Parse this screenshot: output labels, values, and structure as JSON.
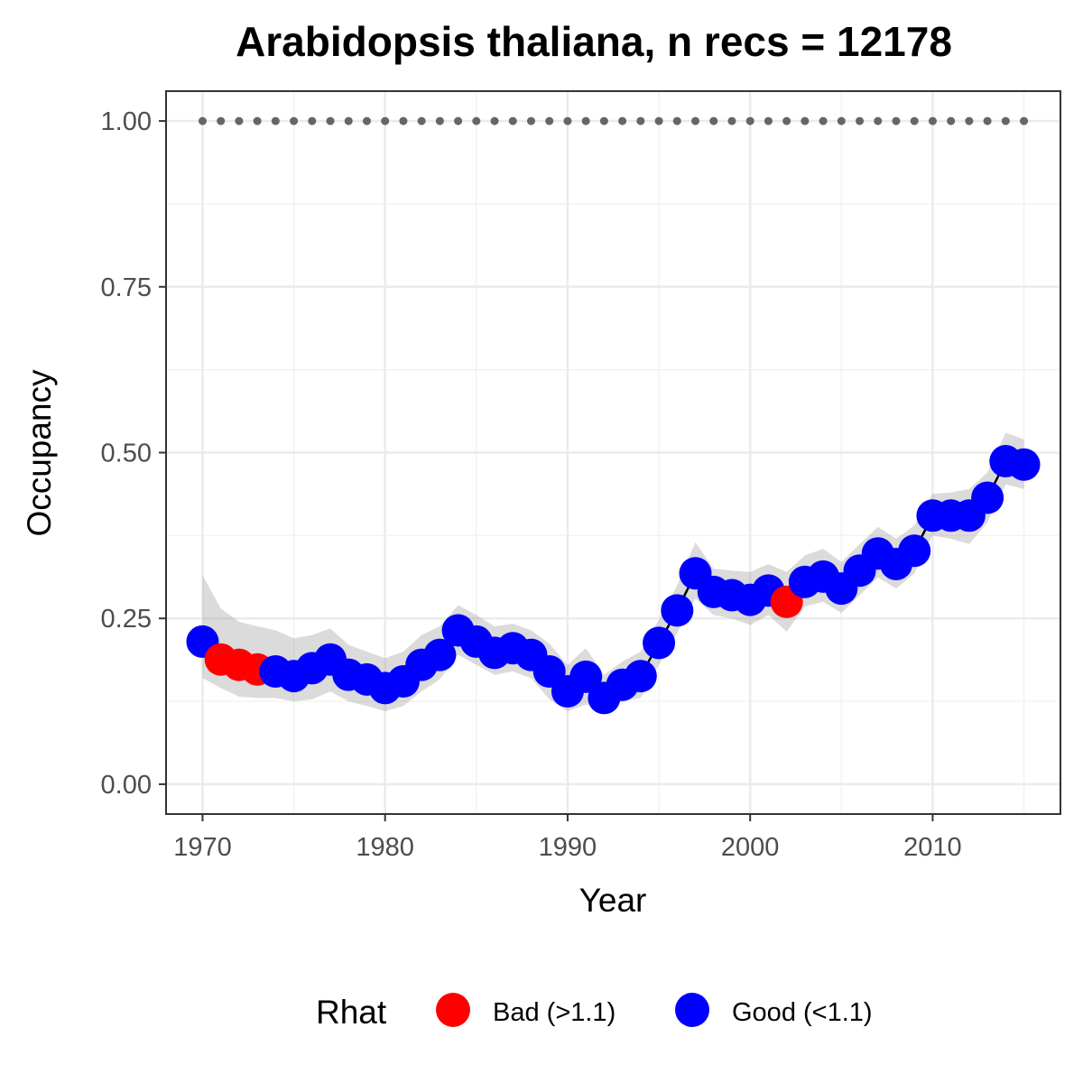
{
  "chart_data": {
    "type": "line",
    "title": "Arabidopsis thaliana, n recs = 12178",
    "xlabel": "Year",
    "ylabel": "Occupancy",
    "xlim": [
      1968,
      2017
    ],
    "ylim": [
      -0.045,
      1.045
    ],
    "x_ticks": [
      1970,
      1980,
      1990,
      2000,
      2010
    ],
    "x_tick_labels": [
      "1970",
      "1980",
      "1990",
      "2000",
      "2010"
    ],
    "y_ticks": [
      0,
      0.25,
      0.5,
      0.75,
      1.0
    ],
    "y_tick_labels": [
      "0.00",
      "0.25",
      "0.50",
      "0.75",
      "1.00"
    ],
    "grid": true,
    "legend": {
      "title": "Rhat",
      "placement": "bottom",
      "entries": [
        {
          "label": "Bad (>1.1)",
          "color": "#ff0000"
        },
        {
          "label": "Good (<1.1)",
          "color": "#0000ff"
        }
      ]
    },
    "reference_line": {
      "y": 1.0,
      "style": "dotted",
      "color": "#666666"
    },
    "series": [
      {
        "x": [
          1970,
          1971,
          1972,
          1973,
          1974,
          1975,
          1976,
          1977,
          1978,
          1979,
          1980,
          1981,
          1982,
          1983,
          1984,
          1985,
          1986,
          1987,
          1988,
          1989,
          1990,
          1991,
          1992,
          1993,
          1994,
          1995,
          1996,
          1997,
          1998,
          1999,
          2000,
          2001,
          2002,
          2003,
          2004,
          2005,
          2006,
          2007,
          2008,
          2009,
          2010,
          2011,
          2012,
          2013,
          2014,
          2015
        ],
        "y": [
          0.215,
          0.188,
          0.18,
          0.173,
          0.17,
          0.163,
          0.175,
          0.188,
          0.165,
          0.158,
          0.145,
          0.155,
          0.18,
          0.195,
          0.232,
          0.215,
          0.198,
          0.205,
          0.195,
          0.17,
          0.14,
          0.162,
          0.13,
          0.15,
          0.163,
          0.213,
          0.262,
          0.318,
          0.29,
          0.285,
          0.278,
          0.292,
          0.275,
          0.305,
          0.313,
          0.295,
          0.322,
          0.348,
          0.332,
          0.352,
          0.405,
          0.405,
          0.405,
          0.432,
          0.487,
          0.482
        ],
        "lower": [
          0.16,
          0.145,
          0.132,
          0.13,
          0.13,
          0.125,
          0.128,
          0.14,
          0.125,
          0.118,
          0.11,
          0.118,
          0.14,
          0.158,
          0.195,
          0.18,
          0.165,
          0.17,
          0.16,
          0.128,
          0.11,
          0.12,
          0.115,
          0.125,
          0.13,
          0.18,
          0.228,
          0.28,
          0.255,
          0.25,
          0.24,
          0.255,
          0.23,
          0.268,
          0.275,
          0.258,
          0.285,
          0.312,
          0.295,
          0.318,
          0.375,
          0.37,
          0.362,
          0.395,
          0.452,
          0.445
        ],
        "upper": [
          0.315,
          0.265,
          0.245,
          0.238,
          0.232,
          0.22,
          0.225,
          0.235,
          0.21,
          0.2,
          0.19,
          0.2,
          0.225,
          0.238,
          0.27,
          0.255,
          0.238,
          0.242,
          0.232,
          0.212,
          0.18,
          0.205,
          0.165,
          0.185,
          0.2,
          0.248,
          0.3,
          0.365,
          0.325,
          0.322,
          0.32,
          0.332,
          0.32,
          0.345,
          0.355,
          0.335,
          0.362,
          0.388,
          0.37,
          0.39,
          0.438,
          0.44,
          0.445,
          0.47,
          0.53,
          0.52
        ],
        "rhat": [
          "Good",
          "Bad",
          "Bad",
          "Bad",
          "Good",
          "Good",
          "Good",
          "Good",
          "Good",
          "Good",
          "Good",
          "Good",
          "Good",
          "Good",
          "Good",
          "Good",
          "Good",
          "Good",
          "Good",
          "Good",
          "Good",
          "Good",
          "Good",
          "Good",
          "Good",
          "Good",
          "Good",
          "Good",
          "Good",
          "Good",
          "Good",
          "Good",
          "Bad",
          "Good",
          "Good",
          "Good",
          "Good",
          "Good",
          "Good",
          "Good",
          "Good",
          "Good",
          "Good",
          "Good",
          "Good",
          "Good"
        ]
      }
    ]
  }
}
